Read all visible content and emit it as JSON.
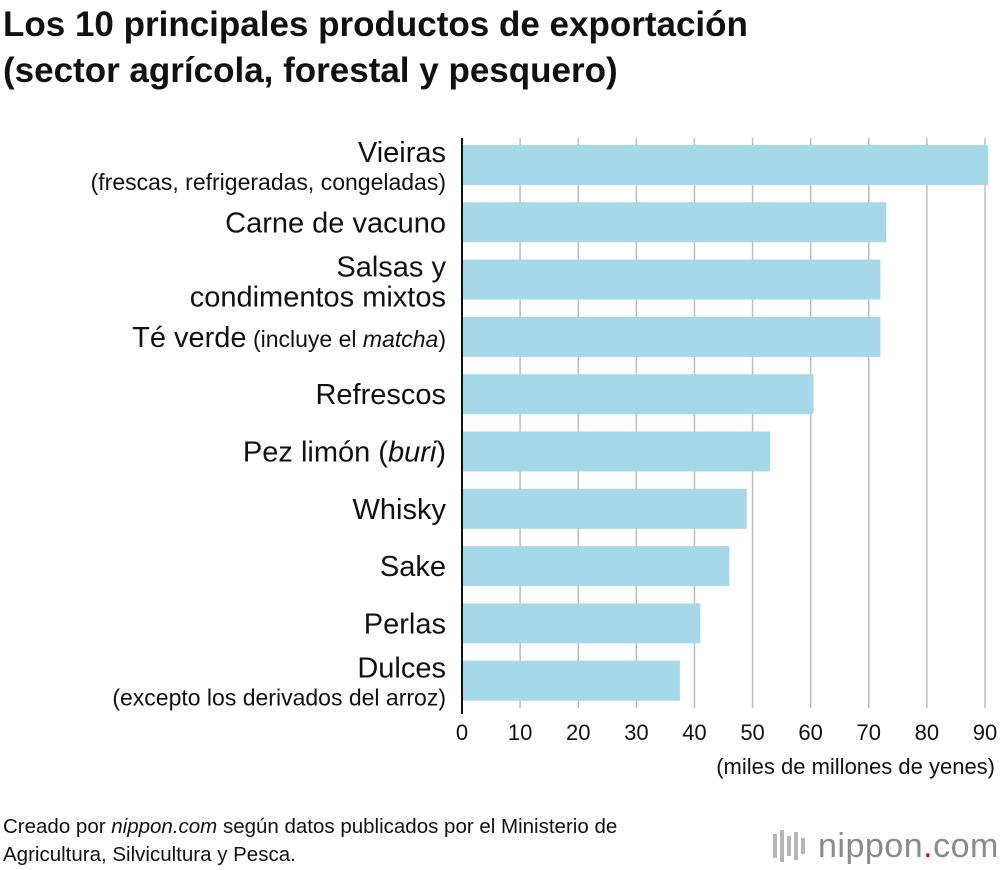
{
  "title": {
    "line1": "Los 10 principales productos de exportación",
    "line2": "(sector agrícola, forestal y pesquero)"
  },
  "chart_data": {
    "type": "bar",
    "orientation": "horizontal",
    "title": "Los 10 principales productos de exportación (sector agrícola, forestal y pesquero)",
    "categories": [
      {
        "label": [
          {
            "text": "Vieiras",
            "style": "main"
          }
        ],
        "sublabel": [
          {
            "text": "(frescas, refrigeradas, congeladas)"
          }
        ]
      },
      {
        "label": [
          {
            "text": "Carne de vacuno",
            "style": "main"
          }
        ]
      },
      {
        "label": [
          {
            "text": "Salsas y",
            "style": "main"
          }
        ],
        "sublabel_main": "condimentos mixtos"
      },
      {
        "label": [
          {
            "text": "Té verde",
            "style": "main"
          },
          {
            "text": " (incluye el ",
            "style": "sub"
          },
          {
            "text": "matcha",
            "style": "sub-italic"
          },
          {
            "text": ")",
            "style": "sub"
          }
        ]
      },
      {
        "label": [
          {
            "text": "Refrescos",
            "style": "main"
          }
        ]
      },
      {
        "label": [
          {
            "text": "Pez limón (",
            "style": "main"
          },
          {
            "text": "buri",
            "style": "main-italic"
          },
          {
            "text": ")",
            "style": "main"
          }
        ]
      },
      {
        "label": [
          {
            "text": "Whisky",
            "style": "main"
          }
        ]
      },
      {
        "label": [
          {
            "text": "Sake",
            "style": "main"
          }
        ]
      },
      {
        "label": [
          {
            "text": "Perlas",
            "style": "main"
          }
        ]
      },
      {
        "label": [
          {
            "text": "Dulces",
            "style": "main"
          }
        ],
        "sublabel": [
          {
            "text": "(excepto los derivados del arroz)"
          }
        ]
      }
    ],
    "values": [
      90.5,
      73,
      72,
      72,
      60.5,
      53,
      49,
      46,
      41,
      37.5
    ],
    "xlim": [
      0,
      90
    ],
    "xticks": [
      0,
      10,
      20,
      30,
      40,
      50,
      60,
      70,
      80,
      90
    ],
    "xlabel": "(miles de millones de yenes)",
    "ylabel": "",
    "grid": true,
    "bar_color": "#a5d8e8"
  },
  "source": {
    "line1_prefix": "Creado por ",
    "line1_italic": "nippon.com",
    "line1_suffix": " según datos publicados por el Ministerio de",
    "line2": "Agricultura, Silvicultura y Pesca."
  },
  "logo": {
    "name": "nippon",
    "dot": ".",
    "tld": "com",
    "accent": "#c8102e"
  }
}
